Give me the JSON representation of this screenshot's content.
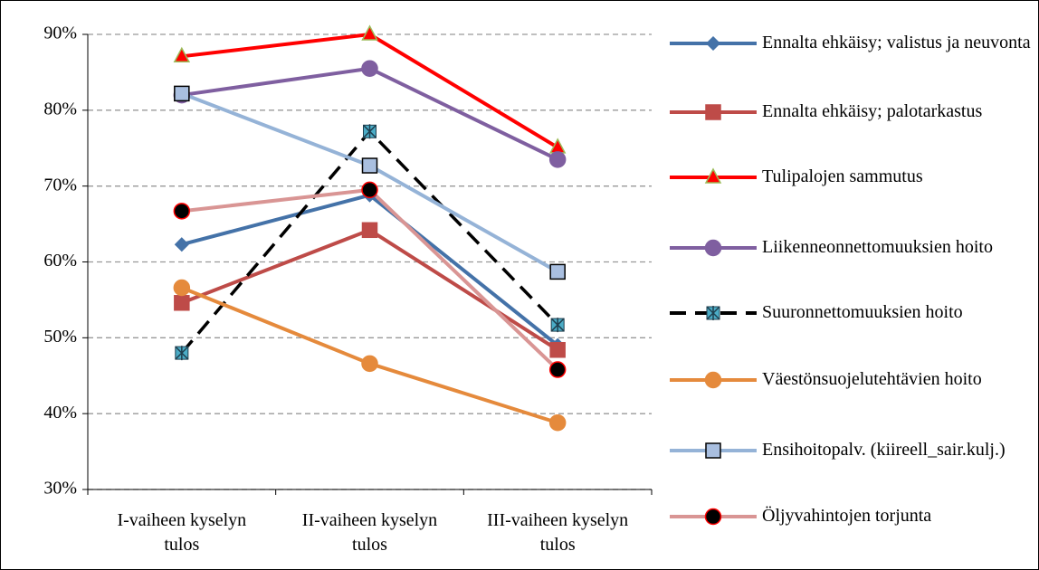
{
  "chart_data": {
    "type": "line",
    "categories": [
      "I-vaiheen kyselyn tulos",
      "II-vaiheen kyselyn tulos",
      "III-vaiheen kyselyn tulos"
    ],
    "ylim": [
      30,
      90
    ],
    "yticks": [
      {
        "value": 30,
        "label": "30%"
      },
      {
        "value": 40,
        "label": "40%"
      },
      {
        "value": 50,
        "label": "50%"
      },
      {
        "value": 60,
        "label": "60%"
      },
      {
        "value": 70,
        "label": "70%"
      },
      {
        "value": 80,
        "label": "80%"
      },
      {
        "value": 90,
        "label": "90%"
      }
    ],
    "grid": true,
    "legend": "right",
    "series": [
      {
        "name": "Ennalta ehkäisy; valistus ja neuvonta",
        "color": "#4472a8",
        "marker": "diamond",
        "marker_fill": "#4472a8",
        "marker_edge": "#4472a8",
        "dashed": false,
        "values": [
          62.3,
          68.8,
          49.0
        ]
      },
      {
        "name": "Ennalta ehkäisy; palotarkastus",
        "color": "#be4b48",
        "marker": "square",
        "marker_fill": "#be4b48",
        "marker_edge": "#be4b48",
        "dashed": false,
        "values": [
          54.6,
          64.2,
          48.4
        ]
      },
      {
        "name": "Tulipalojen sammutus",
        "color": "#ff0000",
        "marker": "triangle",
        "marker_fill": "#ff0000",
        "marker_edge": "#9bbb59",
        "dashed": false,
        "values": [
          87.1,
          90.0,
          75.1
        ]
      },
      {
        "name": "Liikenneonnettomuuksien hoito",
        "color": "#7f5fa0",
        "marker": "circle",
        "marker_fill": "#7f5fa0",
        "marker_edge": "#7f5fa0",
        "dashed": false,
        "values": [
          82.0,
          85.5,
          73.5
        ]
      },
      {
        "name": "Suuronnettomuuksien hoito",
        "color": "#000000",
        "marker": "x",
        "marker_fill": "#4bacc6",
        "marker_edge": "#1f3f4f",
        "dashed": true,
        "values": [
          48.0,
          77.2,
          51.7
        ]
      },
      {
        "name": "Väestönsuojelutehtävien hoito",
        "color": "#e58a3c",
        "marker": "circle",
        "marker_fill": "#e58a3c",
        "marker_edge": "#e58a3c",
        "dashed": false,
        "values": [
          56.6,
          46.6,
          38.8
        ]
      },
      {
        "name": "Ensihoitopalv. (kiireell_sair.kulj.)",
        "color": "#95b3d7",
        "marker": "square",
        "marker_fill": "#a9bfe0",
        "marker_edge": "#000000",
        "dashed": false,
        "values": [
          82.2,
          72.7,
          58.7
        ]
      },
      {
        "name": "Öljyvahintojen torjunta",
        "color": "#d99594",
        "marker": "circle",
        "marker_fill": "#000000",
        "marker_edge": "#ff0000",
        "dashed": false,
        "values": [
          66.7,
          69.5,
          45.8
        ]
      }
    ]
  }
}
